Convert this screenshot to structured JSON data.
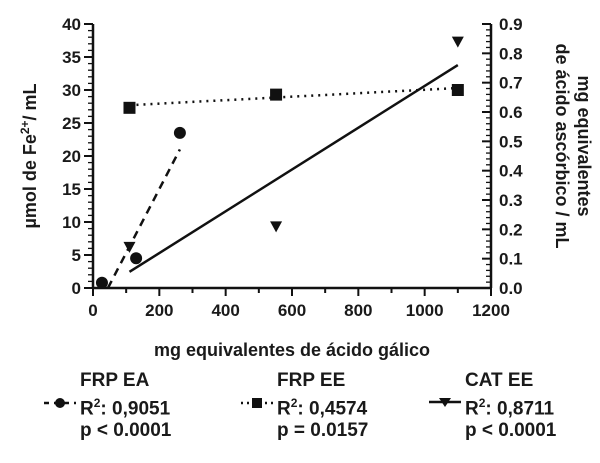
{
  "chart_data": {
    "type": "scatter",
    "title": "",
    "xlabel": "mg equivalentes de ácido gálico",
    "ylabel": "µmol de Fe2+/ mL",
    "ylabel_right": [
      "mg equivalentes",
      "de ácido ascórbico / mL"
    ],
    "xlim": [
      0,
      1200
    ],
    "ylim": [
      0,
      40
    ],
    "ylim_right": [
      0.0,
      0.9
    ],
    "x_ticks": [
      "0",
      "200",
      "400",
      "600",
      "800",
      "1000",
      "1200"
    ],
    "y_ticks": [
      "0",
      "5",
      "10",
      "15",
      "20",
      "25",
      "30",
      "35",
      "40"
    ],
    "y_ticks_right": [
      "0.0",
      "0.1",
      "0.2",
      "0.3",
      "0.4",
      "0.5",
      "0.6",
      "0.7",
      "0.8",
      "0.9"
    ],
    "grid": false,
    "legend_position": "bottom",
    "series": [
      {
        "name": "FRP EA",
        "marker": "circle",
        "line": "dashed",
        "axis": "left",
        "x": [
          27,
          130,
          262
        ],
        "y": [
          0.8,
          4.5,
          23.5
        ],
        "fit": {
          "x": [
            45,
            262
          ],
          "y": [
            0,
            21
          ]
        },
        "r2": "0,9051",
        "p": "p < 0.0001"
      },
      {
        "name": "FRP EE",
        "marker": "square",
        "line": "dotted",
        "axis": "left",
        "x": [
          110,
          552,
          1100
        ],
        "y": [
          27.3,
          29.3,
          30.0
        ],
        "fit": {
          "x": [
            110,
            1100
          ],
          "y": [
            27.7,
            30.3
          ]
        },
        "r2": "0,4574",
        "p": "p = 0.0157"
      },
      {
        "name": "CAT EE",
        "marker": "triangle-down",
        "line": "solid",
        "axis": "right",
        "x": [
          110,
          552,
          1100
        ],
        "y": [
          0.14,
          0.21,
          0.84
        ],
        "fit": {
          "x": [
            110,
            1100
          ],
          "y": [
            0.055,
            0.76
          ]
        },
        "r2": "0,8711",
        "p": "p < 0.0001"
      }
    ]
  },
  "legend": [
    {
      "title": "FRP EA",
      "r2_label": "R",
      "r2_sup": "2",
      "r2_value": ": 0,9051",
      "p": "p < 0.0001"
    },
    {
      "title": "FRP EE",
      "r2_label": "R",
      "r2_sup": "2",
      "r2_value": ": 0,4574",
      "p": "p = 0.0157"
    },
    {
      "title": "CAT EE",
      "r2_label": "R",
      "r2_sup": "2",
      "r2_value": ": 0,8711",
      "p": "p < 0.0001"
    }
  ]
}
